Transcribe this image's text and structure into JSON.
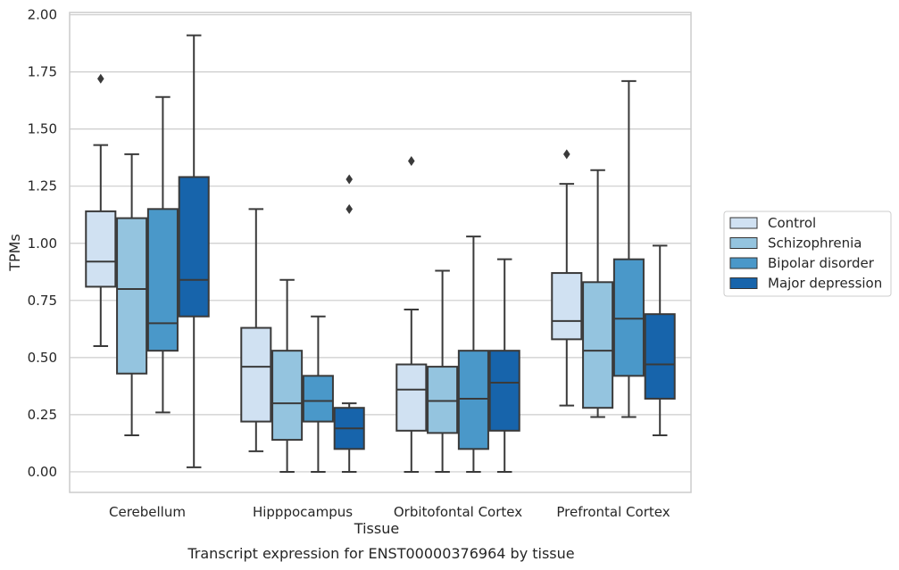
{
  "chart_data": {
    "type": "box",
    "xlabel": "Tissue",
    "ylabel": "TPMs",
    "caption": "Transcript expression for ENST00000376964 by tissue",
    "ylim": [
      -0.09,
      2.01
    ],
    "yticks": [
      "0.00",
      "0.25",
      "0.50",
      "0.75",
      "1.00",
      "1.25",
      "1.50",
      "1.75",
      "2.00"
    ],
    "grid": true,
    "legend_position": "right",
    "categories": [
      "Cerebellum",
      "Hipppocampus",
      "Orbitofontal Cortex",
      "Prefrontal Cortex"
    ],
    "series": [
      {
        "name": "Control",
        "color": "#d0e1f2",
        "boxes": [
          {
            "min": 0.55,
            "q1": 0.81,
            "median": 0.92,
            "q3": 1.14,
            "max": 1.43,
            "outliers": [
              1.72
            ]
          },
          {
            "min": 0.09,
            "q1": 0.22,
            "median": 0.46,
            "q3": 0.63,
            "max": 1.15,
            "outliers": []
          },
          {
            "min": 0.0,
            "q1": 0.18,
            "median": 0.36,
            "q3": 0.47,
            "max": 0.71,
            "outliers": [
              1.36
            ]
          },
          {
            "min": 0.29,
            "q1": 0.58,
            "median": 0.66,
            "q3": 0.87,
            "max": 1.26,
            "outliers": [
              1.39
            ]
          }
        ]
      },
      {
        "name": "Schizophrenia",
        "color": "#94c4df",
        "boxes": [
          {
            "min": 0.16,
            "q1": 0.43,
            "median": 0.8,
            "q3": 1.11,
            "max": 1.39,
            "outliers": []
          },
          {
            "min": 0.0,
            "q1": 0.14,
            "median": 0.3,
            "q3": 0.53,
            "max": 0.84,
            "outliers": []
          },
          {
            "min": 0.0,
            "q1": 0.17,
            "median": 0.31,
            "q3": 0.46,
            "max": 0.88,
            "outliers": []
          },
          {
            "min": 0.24,
            "q1": 0.28,
            "median": 0.53,
            "q3": 0.83,
            "max": 1.32,
            "outliers": []
          }
        ]
      },
      {
        "name": "Bipolar disorder",
        "color": "#4a98c9",
        "boxes": [
          {
            "min": 0.26,
            "q1": 0.53,
            "median": 0.65,
            "q3": 1.15,
            "max": 1.64,
            "outliers": []
          },
          {
            "min": 0.0,
            "q1": 0.22,
            "median": 0.31,
            "q3": 0.42,
            "max": 0.68,
            "outliers": []
          },
          {
            "min": 0.0,
            "q1": 0.1,
            "median": 0.32,
            "q3": 0.53,
            "max": 1.03,
            "outliers": []
          },
          {
            "min": 0.24,
            "q1": 0.42,
            "median": 0.67,
            "q3": 0.93,
            "max": 1.71,
            "outliers": []
          }
        ]
      },
      {
        "name": "Major depression",
        "color": "#1764ab",
        "boxes": [
          {
            "min": 0.02,
            "q1": 0.68,
            "median": 0.84,
            "q3": 1.29,
            "max": 1.91,
            "outliers": []
          },
          {
            "min": 0.0,
            "q1": 0.1,
            "median": 0.19,
            "q3": 0.28,
            "max": 0.3,
            "outliers": [
              1.28,
              1.15
            ]
          },
          {
            "min": 0.0,
            "q1": 0.18,
            "median": 0.39,
            "q3": 0.53,
            "max": 0.93,
            "outliers": []
          },
          {
            "min": 0.16,
            "q1": 0.32,
            "median": 0.47,
            "q3": 0.69,
            "max": 0.99,
            "outliers": []
          }
        ]
      }
    ]
  }
}
